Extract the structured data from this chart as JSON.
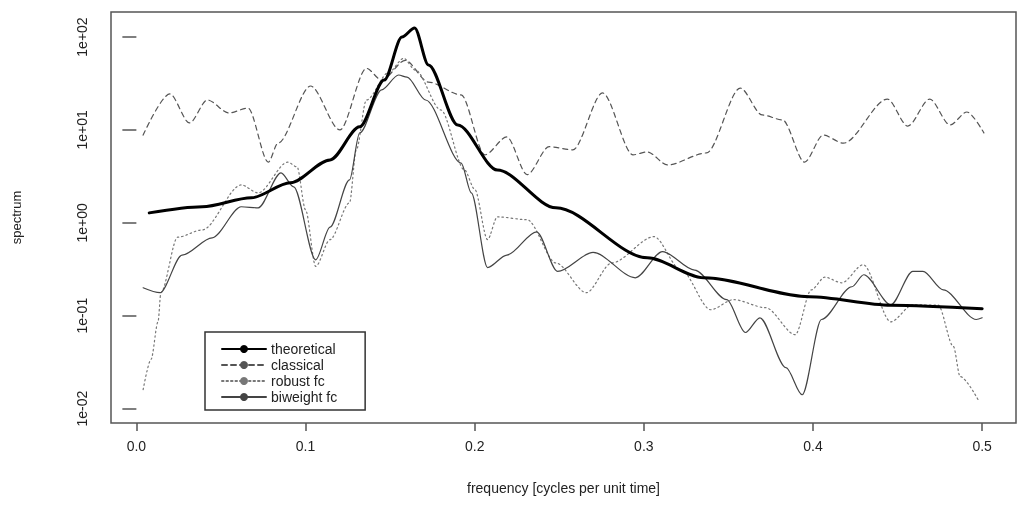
{
  "chart_data": {
    "type": "line",
    "xlabel": "frequency [cycles per unit time]",
    "ylabel": "spectrum",
    "xlim": [
      -0.015,
      0.52
    ],
    "xticks": [
      {
        "value": 0,
        "label": "0.0"
      },
      0.1,
      0.2,
      0.3,
      0.4,
      0.5
    ],
    "ylim": [
      0.007,
      186
    ],
    "yticks": [
      {
        "value": 0.01,
        "label": "1e-02"
      },
      {
        "value": 0.1,
        "label": "1e-01"
      },
      {
        "value": 1,
        "label": "1e+00"
      },
      {
        "value": 10,
        "label": "1e+01"
      },
      {
        "value": 100,
        "label": "1e+02"
      }
    ],
    "log": "y",
    "grid": false,
    "legend": "bottom left",
    "marker": "none",
    "series": [
      {
        "name": "theoretical",
        "color": "#000000",
        "line_style": "solid",
        "x": [
          0.0076,
          0.039,
          0.068,
          0.091,
          0.1145,
          0.132,
          0.1465,
          0.157,
          0.1645,
          0.1727,
          0.19,
          0.2134,
          0.248,
          0.302,
          0.3355,
          0.398,
          0.446,
          0.5
        ],
        "values": [
          1.28,
          1.49,
          1.86,
          2.7,
          4.76,
          10.8,
          34.4,
          100,
          125,
          50,
          11.3,
          3.7,
          1.45,
          0.42,
          0.256,
          0.16,
          0.13,
          0.119
        ]
      },
      {
        "name": "classical",
        "color": "#555555",
        "line_style": "dashed",
        "x": [
          0.004,
          0.0198,
          0.0314,
          0.042,
          0.0547,
          0.066,
          0.078,
          0.0837,
          0.103,
          0.1203,
          0.136,
          0.145,
          0.159,
          0.1727,
          0.192,
          0.206,
          0.219,
          0.231,
          0.244,
          0.258,
          0.2756,
          0.2936,
          0.302,
          0.314,
          0.337,
          0.357,
          0.37,
          0.382,
          0.395,
          0.406,
          0.418,
          0.444,
          0.456,
          0.469,
          0.481,
          0.491,
          0.501
        ],
        "values": [
          8.8,
          24.4,
          11.9,
          21,
          15.2,
          17.2,
          4.5,
          7.2,
          29.7,
          10,
          46,
          34.4,
          56,
          32.7,
          23.8,
          5.4,
          8.4,
          3.3,
          6.6,
          6.1,
          25,
          5.4,
          5.8,
          4.2,
          5.65,
          28.2,
          14.5,
          12.8,
          4.5,
          8.8,
          7.2,
          21.5,
          11,
          21.5,
          11.3,
          15.6,
          9.3
        ]
      },
      {
        "name": "robust fc",
        "color": "#777777",
        "line_style": "dotted",
        "x": [
          0.004,
          0.0087,
          0.0128,
          0.0145,
          0.0244,
          0.039,
          0.062,
          0.072,
          0.0895,
          0.095,
          0.1,
          0.106,
          0.1145,
          0.126,
          0.13,
          0.136,
          0.1494,
          0.158,
          0.165,
          0.18,
          0.194,
          0.2,
          0.2076,
          0.2134,
          0.231,
          0.248,
          0.266,
          0.281,
          0.306,
          0.322,
          0.3395,
          0.353,
          0.372,
          0.3895,
          0.399,
          0.407,
          0.417,
          0.4297,
          0.446,
          0.459,
          0.474,
          0.483,
          0.487,
          0.4983
        ],
        "values": [
          0.016,
          0.034,
          0.086,
          0.177,
          0.7,
          0.84,
          2.56,
          2.1,
          4.5,
          4,
          1.38,
          0.34,
          0.66,
          1.64,
          6.1,
          21,
          42,
          59,
          44,
          16.4,
          3.7,
          2.3,
          0.66,
          1.16,
          1.08,
          0.37,
          0.177,
          0.37,
          0.71,
          0.31,
          0.116,
          0.149,
          0.122,
          0.0625,
          0.19,
          0.26,
          0.226,
          0.354,
          0.086,
          0.131,
          0.13,
          0.0466,
          0.0221,
          0.0118
        ]
      },
      {
        "name": "biweight fc",
        "color": "#444444",
        "line_style": "solid",
        "x": [
          0.004,
          0.014,
          0.027,
          0.0448,
          0.062,
          0.072,
          0.0855,
          0.093,
          0.106,
          0.1145,
          0.126,
          0.132,
          0.145,
          0.155,
          0.16,
          0.171,
          0.192,
          0.198,
          0.2076,
          0.219,
          0.2366,
          0.249,
          0.27,
          0.295,
          0.311,
          0.33,
          0.349,
          0.36,
          0.3686,
          0.384,
          0.3936,
          0.405,
          0.423,
          0.43,
          0.446,
          0.459,
          0.465,
          0.477,
          0.4965,
          0.5
        ],
        "values": [
          0.2,
          0.177,
          0.45,
          0.69,
          1.49,
          1.45,
          3.45,
          2.44,
          0.4,
          0.9,
          2.9,
          9.3,
          27,
          39,
          37,
          21,
          4.4,
          2.1,
          0.33,
          0.45,
          0.8,
          0.3,
          0.48,
          0.256,
          0.49,
          0.31,
          0.149,
          0.066,
          0.095,
          0.0276,
          0.0141,
          0.091,
          0.205,
          0.276,
          0.131,
          0.3,
          0.3,
          0.19,
          0.091,
          0.095
        ]
      }
    ]
  }
}
